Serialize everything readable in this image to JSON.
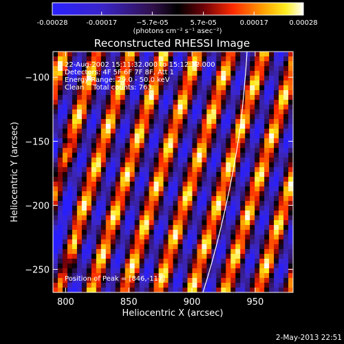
{
  "chart_data": {
    "type": "heatmap",
    "title": "Reconstructed RHESSI Image",
    "xlabel": "Heliocentric X (arcsec)",
    "ylabel": "Heliocentric Y (arcsec)",
    "x_ticks": [
      800,
      850,
      900,
      950
    ],
    "y_ticks": [
      -100,
      -150,
      -200,
      -250
    ],
    "xlim": [
      790,
      980
    ],
    "ylim": [
      -268,
      -80
    ],
    "colorbar": {
      "range": [
        -0.00028,
        0.00028
      ],
      "ticks": [
        "-0.00028",
        "-0.00017",
        "−5.7e-05",
        "5.7e-05",
        "0.00017",
        "0.00028"
      ],
      "tick_values": [
        -0.00028,
        -0.00017,
        -5.7e-05,
        5.7e-05,
        0.00017,
        0.00028
      ],
      "unit_label": "(photons cm⁻² s⁻¹ asec⁻²)",
      "colormap": "rhessi-blue-black-red-yellow-white"
    },
    "annotations": [
      "22-Aug-2002 15:11:32.000 to 15:12:32.000",
      "Detectors: 4F 5F 6F 7F 8F, Att 1",
      "Energy Range: 29.0 - 50.0 keV",
      "Clean    Total counts: 763."
    ],
    "peak_label": "Position of Peak = [846,-117]",
    "limb_line": "white solar limb curve on right side",
    "footer": "2-May-2013 22:51"
  }
}
